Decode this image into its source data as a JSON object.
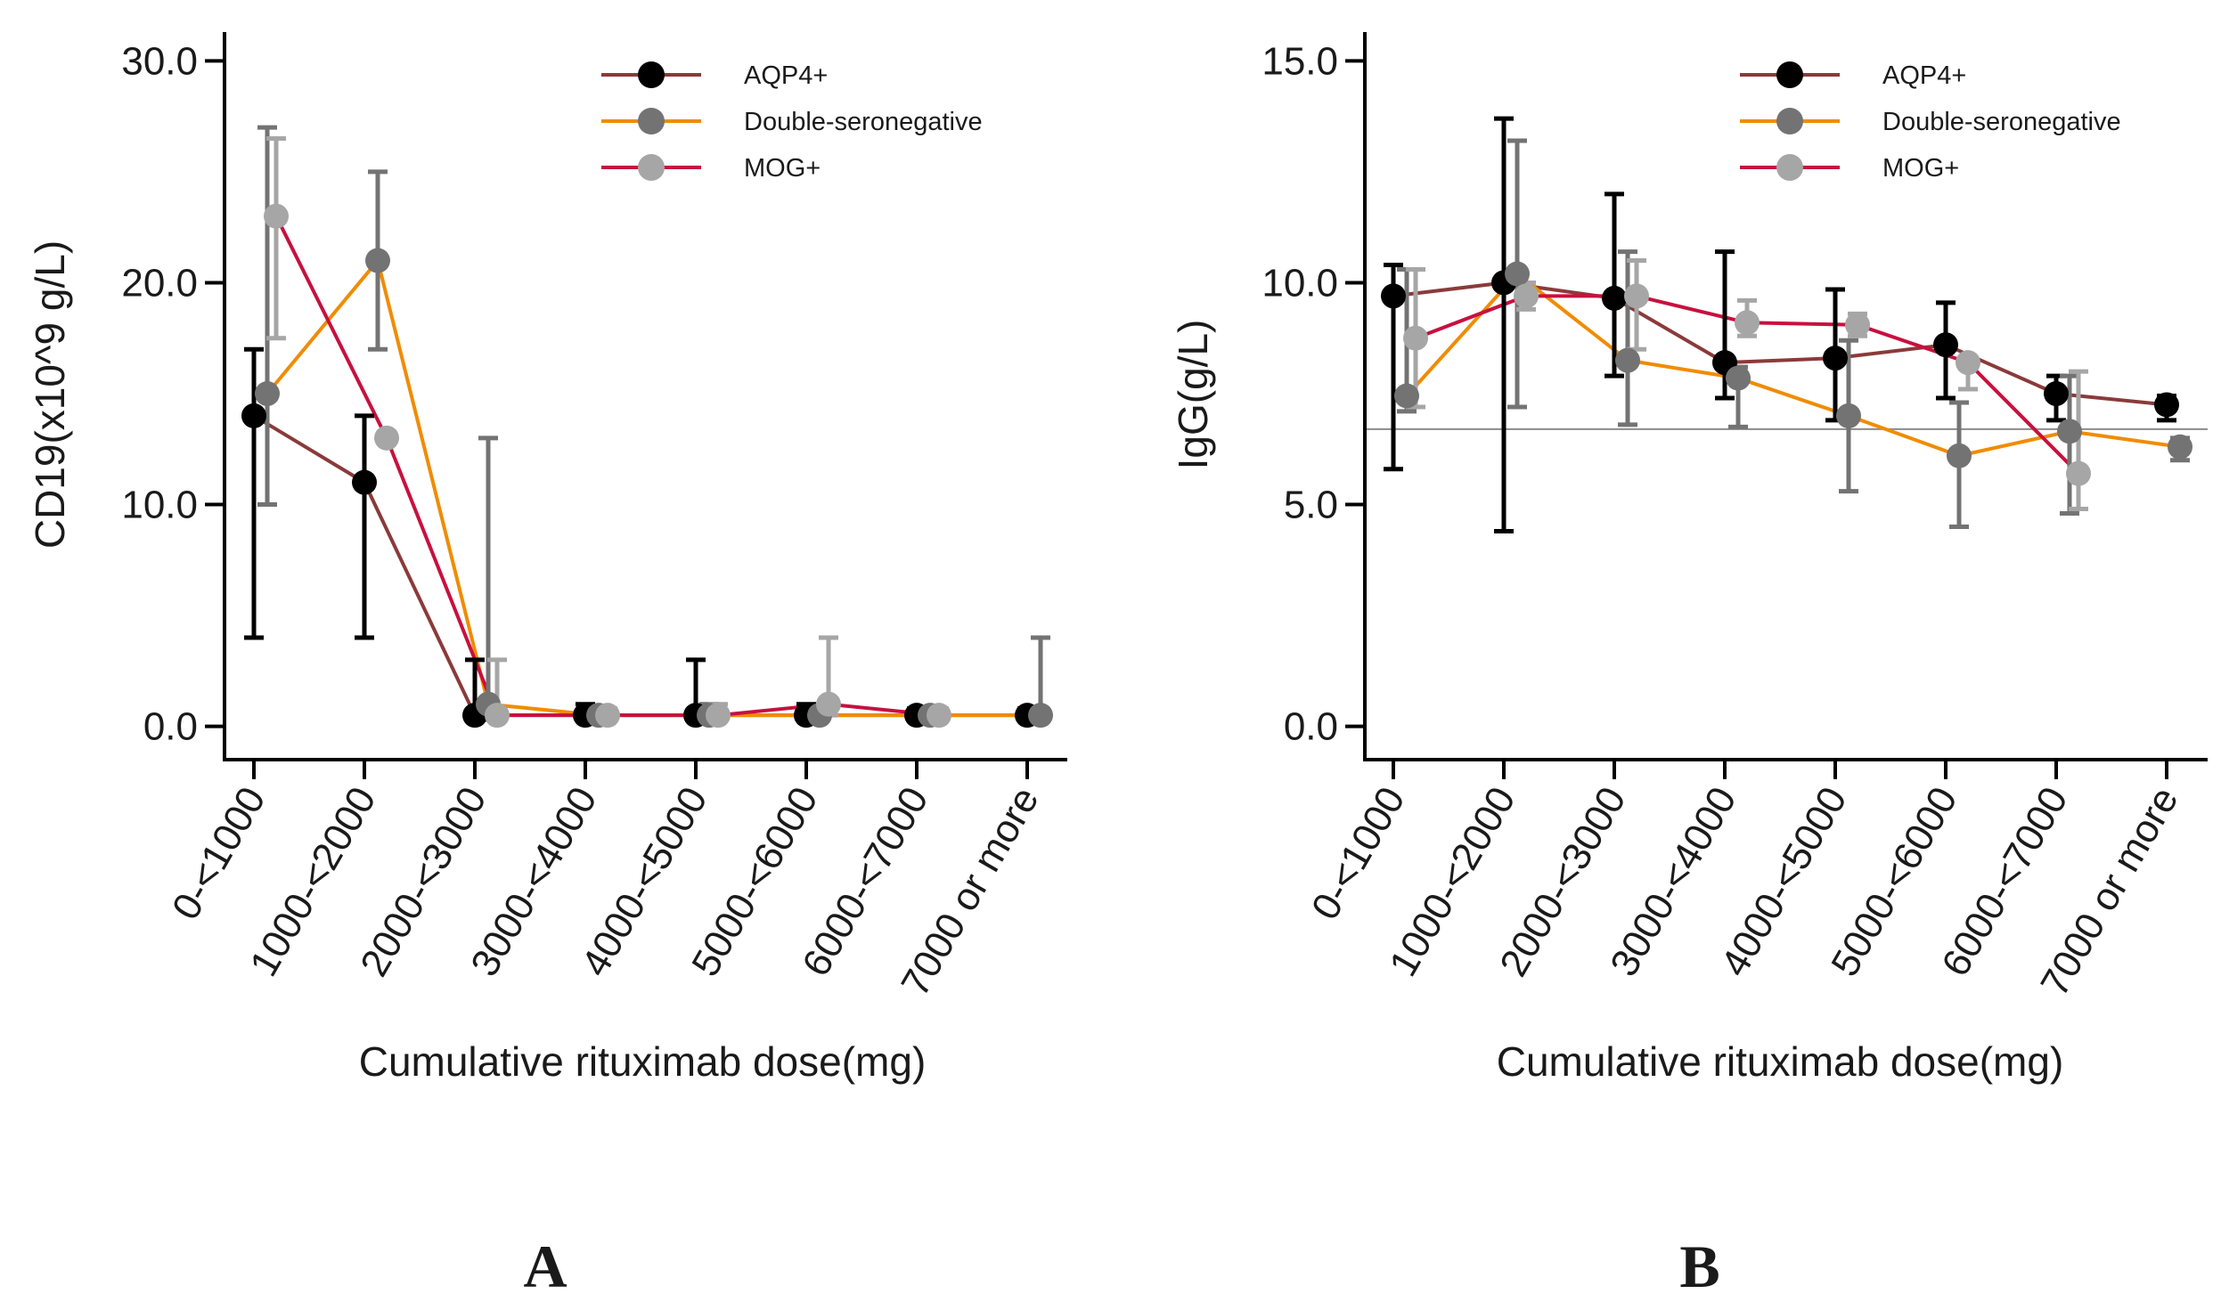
{
  "chart_data": [
    {
      "type": "line",
      "panel_label": "A",
      "xlabel": "Cumulative rituximab dose(mg)",
      "ylabel": "CD19(x10^9 g/L)",
      "categories": [
        "0-<1000",
        "1000-<2000",
        "2000-<3000",
        "3000-<4000",
        "4000-<5000",
        "5000-<6000",
        "6000-<7000",
        "7000 or more"
      ],
      "yticks": [
        "0.0",
        "10.0",
        "20.0",
        "30.0"
      ],
      "ylim": [
        -1.5,
        31.3
      ],
      "grid": false,
      "legend_position": "top-right",
      "series": [
        {
          "name": "AQP4+",
          "line_color": "#8b3a3a",
          "marker_color": "#000000",
          "values": [
            14,
            11,
            0.5,
            0.5,
            0.5,
            0.5,
            0.5,
            0.5
          ],
          "err_low": [
            4,
            4,
            0.5,
            0.3,
            0.4,
            0.3,
            0.3,
            0.3
          ],
          "err_high": [
            17,
            14,
            3,
            1,
            3,
            1,
            0.8,
            0.8
          ]
        },
        {
          "name": "Double-seronegative",
          "line_color": "#f08c00",
          "marker_color": "#737373",
          "values": [
            15,
            21,
            1,
            0.5,
            0.5,
            0.5,
            0.5,
            0.5
          ],
          "err_low": [
            10,
            17,
            0.3,
            0.3,
            0.3,
            0.3,
            0.3,
            0.3
          ],
          "err_high": [
            27,
            25,
            13,
            0.8,
            1,
            0.8,
            0.8,
            4
          ]
        },
        {
          "name": "MOG+",
          "line_color": "#c8103e",
          "marker_color": "#a6a6a6",
          "values": [
            23,
            13,
            0.5,
            0.5,
            0.5,
            1,
            0.5,
            null
          ],
          "err_low": [
            17.5,
            13,
            0.3,
            0.3,
            0.3,
            0.5,
            0.3,
            null
          ],
          "err_high": [
            26.5,
            13,
            3,
            0.8,
            1,
            4,
            0.8,
            null
          ]
        }
      ]
    },
    {
      "type": "line",
      "panel_label": "B",
      "xlabel": "Cumulative rituximab dose(mg)",
      "ylabel": "IgG(g/L)",
      "categories": [
        "0-<1000",
        "1000-<2000",
        "2000-<3000",
        "3000-<4000",
        "4000-<5000",
        "5000-<6000",
        "6000-<7000",
        "7000 or more"
      ],
      "yticks": [
        "0.0",
        "5.0",
        "10.0",
        "15.0"
      ],
      "ylim": [
        -0.75,
        15.65
      ],
      "reference_line": 6.7,
      "grid": false,
      "legend_position": "top-right",
      "series": [
        {
          "name": "AQP4+",
          "line_color": "#8b3a3a",
          "marker_color": "#000000",
          "values": [
            9.7,
            10.0,
            9.65,
            8.2,
            8.3,
            8.6,
            7.5,
            7.25
          ],
          "err_low": [
            5.8,
            4.4,
            7.9,
            7.4,
            6.9,
            7.4,
            6.9,
            6.9
          ],
          "err_high": [
            10.4,
            13.7,
            12.0,
            10.7,
            9.85,
            9.55,
            7.9,
            7.45
          ]
        },
        {
          "name": "Double-seronegative",
          "line_color": "#f08c00",
          "marker_color": "#737373",
          "values": [
            7.45,
            10.2,
            8.25,
            7.85,
            7.0,
            6.1,
            6.65,
            6.3
          ],
          "err_low": [
            7.1,
            7.2,
            6.8,
            6.75,
            5.3,
            4.5,
            4.8,
            6.0
          ],
          "err_high": [
            10.3,
            13.2,
            10.7,
            8.1,
            8.7,
            7.3,
            7.9,
            6.5
          ]
        },
        {
          "name": "MOG+",
          "line_color": "#c8103e",
          "marker_color": "#a6a6a6",
          "values": [
            8.75,
            9.7,
            9.7,
            9.1,
            9.05,
            8.2,
            5.7,
            null
          ],
          "err_low": [
            7.2,
            9.4,
            8.5,
            8.8,
            8.8,
            7.6,
            4.9,
            null
          ],
          "err_high": [
            10.3,
            10.0,
            10.5,
            9.6,
            9.3,
            8.3,
            8.0,
            null
          ]
        }
      ]
    }
  ]
}
